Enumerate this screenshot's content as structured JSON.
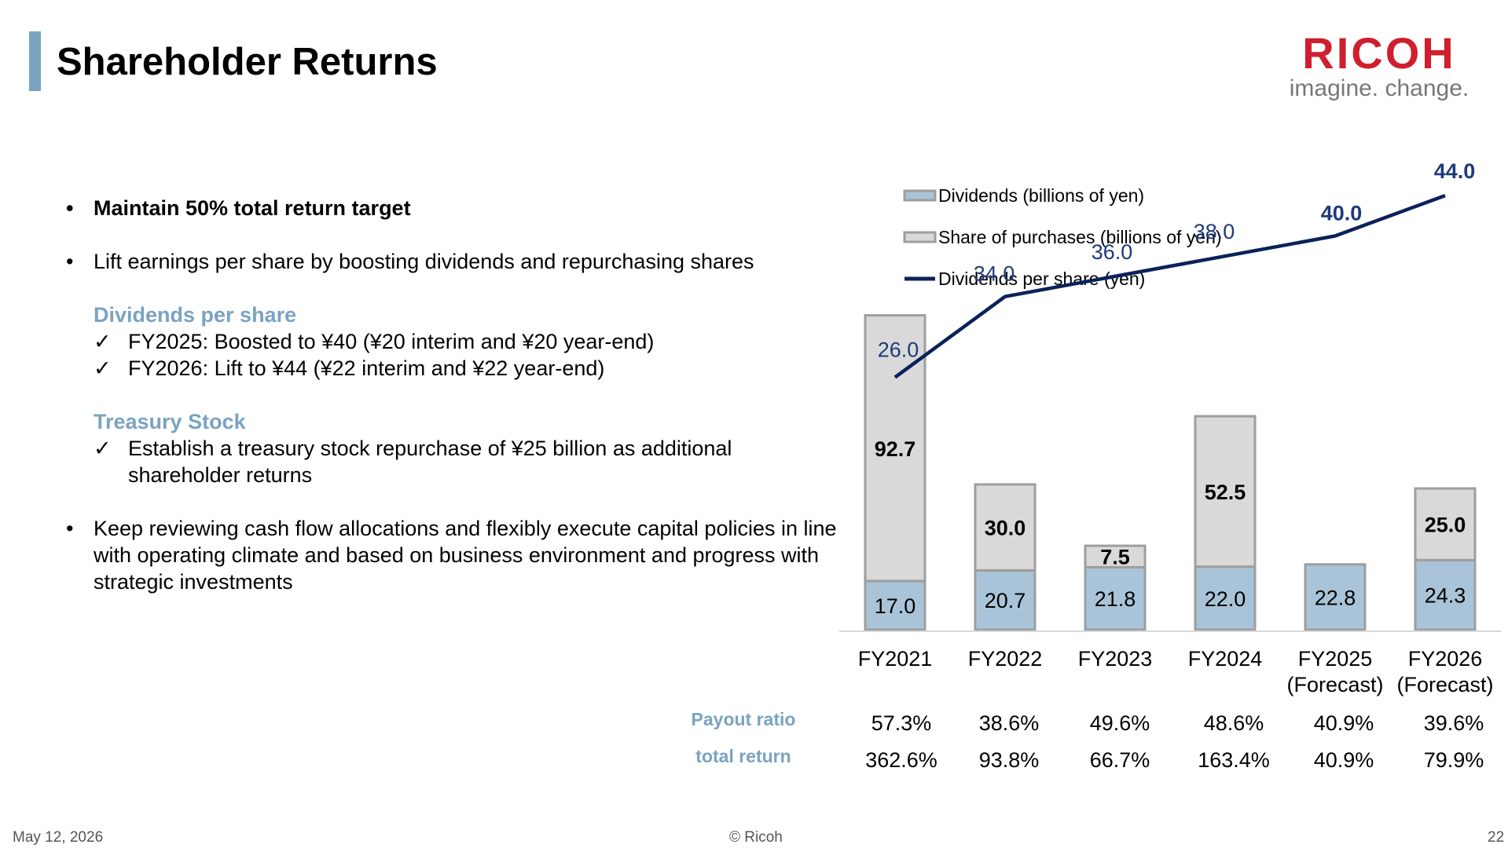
{
  "title": "Shareholder Returns",
  "logo": {
    "word": "RICOH",
    "tagline": "imagine. change."
  },
  "bullets": {
    "b1": "Maintain 50% total return target",
    "b2": "Lift earnings per share by boosting dividends and repurchasing shares",
    "dps_heading": "Dividends per share",
    "dps_1": "FY2025: Boosted to ¥40 (¥20 interim and ¥20 year-end)",
    "dps_2": "FY2026: Lift to ¥44 (¥22 interim and ¥22 year-end)",
    "ts_heading": "Treasury Stock",
    "ts_1": "Establish a treasury stock repurchase of ¥25 billion as additional shareholder returns",
    "b3": "Keep reviewing cash flow allocations and flexibly execute capital policies in line with operating climate and based on business environment and progress with strategic investments"
  },
  "chart_data": {
    "type": "bar",
    "stacked": true,
    "categories": [
      [
        "FY2021"
      ],
      [
        "FY2022"
      ],
      [
        "FY2023"
      ],
      [
        "FY2024"
      ],
      [
        "FY2025",
        "(Forecast)"
      ],
      [
        "FY2026",
        "(Forecast)"
      ]
    ],
    "series": [
      {
        "name": "Dividends (billions of yen)",
        "type": "bar",
        "color": "#a9c4d8",
        "values": [
          17.0,
          20.7,
          21.8,
          22.0,
          22.8,
          24.3
        ],
        "labels": [
          "17.0",
          "20.7",
          "21.8",
          "22.0",
          "22.8",
          "24.3"
        ]
      },
      {
        "name": "Share of purchases (billions of  yen)",
        "type": "bar",
        "color": "#d9d9d9",
        "values": [
          92.7,
          30.0,
          7.5,
          52.5,
          0,
          25.0
        ],
        "labels": [
          "92.7",
          "30.0",
          "7.5",
          "52.5",
          "",
          "25.0"
        ]
      },
      {
        "name": "Dividends per share (yen)",
        "type": "line",
        "color": "#0b2159",
        "values": [
          26.0,
          34.0,
          36.0,
          38.0,
          40.0,
          44.0
        ],
        "labels": [
          "26.0",
          "34.0",
          "36.0",
          "38.0",
          "40.0",
          "44.0"
        ],
        "bold_labels": [
          false,
          false,
          false,
          false,
          true,
          true
        ]
      }
    ],
    "legend_position": "top"
  },
  "table": {
    "rows": [
      {
        "label": "Payout ratio",
        "values": [
          "57.3%",
          "38.6%",
          "49.6%",
          "48.6%",
          "40.9%",
          "39.6%"
        ]
      },
      {
        "label": "total return",
        "values": [
          "362.6%",
          "93.8%",
          "66.7%",
          "163.4%",
          "40.9%",
          "79.9%"
        ]
      }
    ]
  },
  "footer": {
    "date": "May 12, 2026",
    "copyright": "© Ricoh",
    "page": "22"
  }
}
